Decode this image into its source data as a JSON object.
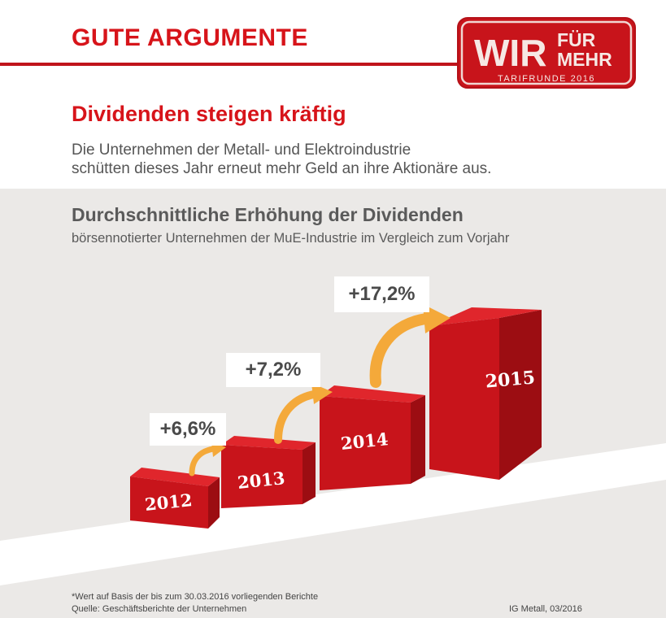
{
  "header": {
    "headline": "GUTE ARGUMENTE",
    "logo": {
      "word_big": "WIR",
      "word_top": "FÜR",
      "word_bottom": "MEHR",
      "tagline": "TARIFRUNDE 2016"
    }
  },
  "intro": {
    "title": "Dividenden steigen kräftig",
    "lines": [
      "Die Unternehmen der Metall- und Elektroindustrie",
      "schütten dieses Jahr erneut mehr Geld an ihre Aktionäre aus."
    ]
  },
  "chart_data": {
    "type": "bar",
    "title": "Durchschnittliche Erhöhung der Dividenden",
    "subtitle": "börsennotierter Unternehmen der MuE-Industrie im Vergleich zum Vorjahr",
    "categories": [
      "2012",
      "2013",
      "2014",
      "2015"
    ],
    "increase_labels": [
      "+6,6%",
      "+7,2%",
      "+17,2%"
    ],
    "increase_values": [
      6.6,
      7.2,
      17.2
    ],
    "legend": "none",
    "grid": false
  },
  "footer": {
    "note": "*Wert auf Basis der bis zum 30.03.2016 vorliegenden Berichte",
    "source": "Quelle: Geschäftsberichte der Unternehmen",
    "credit": "IG Metall, 03/2016"
  },
  "colors": {
    "accent_red": "#d7141a",
    "bar_front": "#c8141b",
    "bar_top": "#e0262c",
    "bar_side": "#9c0d12",
    "arrow": "#f4a93a",
    "panel_bg": "#ebe9e7"
  }
}
